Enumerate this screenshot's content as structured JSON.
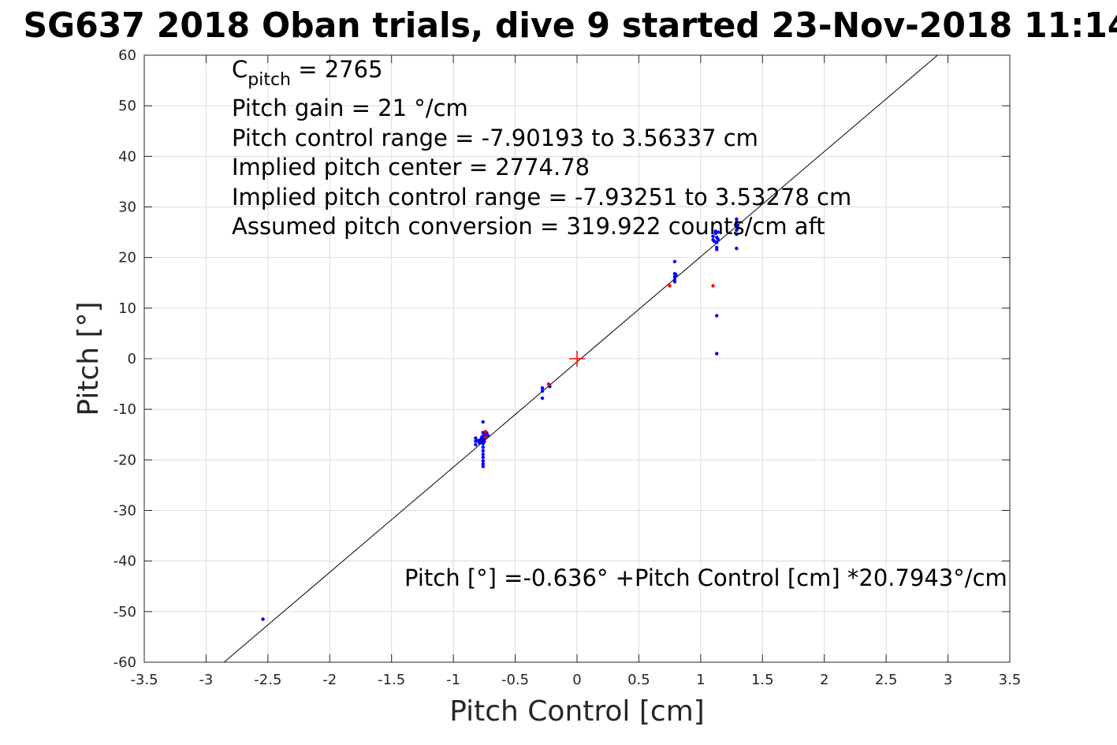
{
  "chart_data": {
    "type": "scatter",
    "title": "SG637 2018 Oban trials, dive 9 started 23-Nov-2018 11:14",
    "xlabel": "Pitch Control [cm]",
    "ylabel": "Pitch [°]",
    "xlim": [
      -3.5,
      3.5
    ],
    "ylim": [
      -60,
      60
    ],
    "xticks": [
      -3.5,
      -3,
      -2.5,
      -2,
      -1.5,
      -1,
      -0.5,
      0,
      0.5,
      1,
      1.5,
      2,
      2.5,
      3,
      3.5
    ],
    "yticks": [
      -60,
      -50,
      -40,
      -30,
      -20,
      -10,
      0,
      10,
      20,
      30,
      40,
      50,
      60
    ],
    "grid": true,
    "colors": {
      "series": "#0000ff",
      "highlight": "#ff0000",
      "fit": "#000000",
      "grid": "#dcdcdc",
      "axes": "#262626"
    },
    "fit_line": {
      "intercept": -0.636,
      "slope": 20.7943,
      "color": "#000000"
    },
    "center_marker": {
      "x": 0,
      "y": 0,
      "color": "#ff0000",
      "shape": "plus"
    },
    "series": [
      {
        "color": "#0000ff",
        "points": [
          [
            -2.54,
            -51.5
          ],
          [
            -0.82,
            -15.7
          ],
          [
            -0.82,
            -16.3
          ],
          [
            -0.82,
            -17.0
          ],
          [
            -0.8,
            -16.2
          ],
          [
            -0.79,
            -16.6
          ],
          [
            -0.76,
            -12.5
          ],
          [
            -0.76,
            -14.6
          ],
          [
            -0.76,
            -15.3
          ],
          [
            -0.76,
            -16.0
          ],
          [
            -0.76,
            -16.8
          ],
          [
            -0.76,
            -17.5
          ],
          [
            -0.76,
            -18.2
          ],
          [
            -0.76,
            -18.9
          ],
          [
            -0.76,
            -19.5
          ],
          [
            -0.76,
            -20.2
          ],
          [
            -0.76,
            -20.8
          ],
          [
            -0.76,
            -21.3
          ],
          [
            -0.75,
            -15.8
          ],
          [
            -0.75,
            -16.4
          ],
          [
            -0.74,
            -15.0
          ],
          [
            -0.74,
            -15.6
          ],
          [
            -0.73,
            -14.7
          ],
          [
            -0.72,
            -15.2
          ],
          [
            -0.78,
            -16.0
          ],
          [
            -0.77,
            -16.5
          ],
          [
            -0.77,
            -15.5
          ],
          [
            -0.28,
            -5.8
          ],
          [
            -0.28,
            -6.4
          ],
          [
            -0.28,
            -7.8
          ],
          [
            -0.22,
            -5.5
          ],
          [
            0.79,
            16.8
          ],
          [
            0.79,
            16.2
          ],
          [
            0.79,
            15.6
          ],
          [
            0.79,
            15.2
          ],
          [
            0.79,
            19.2
          ],
          [
            0.8,
            16.6
          ],
          [
            1.1,
            23.5
          ],
          [
            1.1,
            24.2
          ],
          [
            1.11,
            23.2
          ],
          [
            1.12,
            24.8
          ],
          [
            1.12,
            25.2
          ],
          [
            1.13,
            22.0
          ],
          [
            1.13,
            21.6
          ],
          [
            1.13,
            23.0
          ],
          [
            1.13,
            24.0
          ],
          [
            1.13,
            1.0
          ],
          [
            1.13,
            8.5
          ],
          [
            1.14,
            25.0
          ],
          [
            1.14,
            23.6
          ],
          [
            1.29,
            21.8
          ],
          [
            1.29,
            24.6
          ],
          [
            1.29,
            25.4
          ],
          [
            1.29,
            26.2
          ],
          [
            1.29,
            27.0
          ],
          [
            1.29,
            27.6
          ],
          [
            1.3,
            25.8
          ],
          [
            1.3,
            26.4
          ]
        ]
      },
      {
        "color": "#ff0000",
        "points": [
          [
            -0.74,
            -14.4
          ],
          [
            -0.74,
            -15.5
          ],
          [
            -0.23,
            -5.0
          ],
          [
            0.75,
            14.4
          ],
          [
            1.1,
            14.4
          ]
        ]
      }
    ],
    "annotations": {
      "cpitch_label": "C",
      "cpitch_sub": "pitch",
      "cpitch_value": " = 2765",
      "gain": "Pitch gain = 21 °/cm",
      "range": "Pitch control range = -7.90193 to 3.56337 cm",
      "center": "Implied pitch center = 2774.78",
      "implied_range": "Implied pitch control range = -7.93251 to 3.53278 cm",
      "conversion": "Assumed pitch conversion = 319.922 counts/cm aft",
      "equation": "Pitch [°] =-0.636° +Pitch Control [cm] *20.7943°/cm"
    }
  }
}
